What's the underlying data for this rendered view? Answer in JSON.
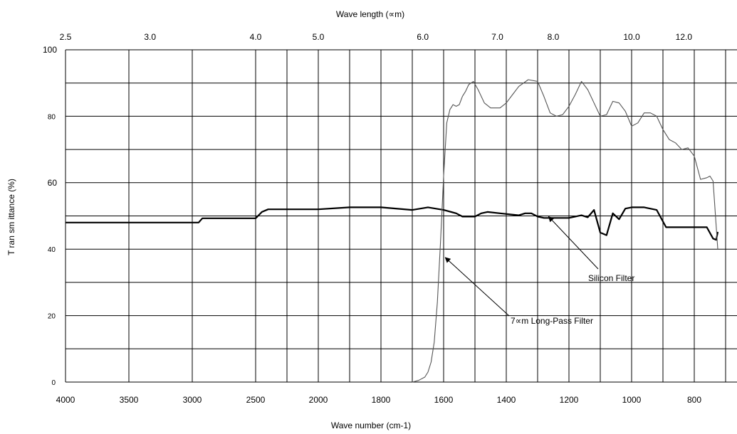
{
  "chart_data": {
    "type": "line",
    "xlabel_top": "Wave length (∝m)",
    "xlabel": "Wave number (cm-1)",
    "ylabel": "T ran sm ittance (%)",
    "ylim": [
      0,
      100
    ],
    "y_ticks": [
      "0",
      "20",
      "40",
      "60",
      "80",
      "100"
    ],
    "x_ticks_bottom": [
      "4000",
      "3500",
      "3000",
      "2500",
      "2000",
      "1800",
      "1600",
      "1400",
      "1200",
      "1000",
      "800"
    ],
    "x_ticks_top": [
      "2.5",
      "3.0",
      "4.0",
      "5.0",
      "6.0",
      "7.0",
      "8.0",
      "10.0",
      "12.0"
    ],
    "grid": true,
    "series": [
      {
        "name": "Silicon Filter",
        "stroke": "#000000",
        "x": [
          4000,
          3500,
          3000,
          2950,
          2920,
          2500,
          2450,
          2400,
          2000,
          1900,
          1800,
          1700,
          1650,
          1600,
          1560,
          1540,
          1500,
          1480,
          1460,
          1420,
          1360,
          1340,
          1320,
          1300,
          1280,
          1220,
          1200,
          1160,
          1140,
          1120,
          1100,
          1080,
          1060,
          1040,
          1020,
          1000,
          960,
          920,
          890,
          800,
          760,
          740,
          730,
          725
        ],
        "values": [
          48,
          48,
          48,
          48,
          49.3,
          49.3,
          51.2,
          52,
          52,
          52.6,
          52.6,
          51.8,
          52.6,
          51.8,
          50.8,
          49.8,
          49.8,
          50.8,
          51.2,
          50.8,
          50.2,
          50.8,
          50.8,
          49.8,
          49.4,
          49.4,
          49.4,
          50.2,
          49.6,
          51.8,
          45,
          44.2,
          50.8,
          49,
          52.2,
          52.6,
          52.6,
          51.8,
          46.6,
          46.6,
          46.6,
          43.2,
          42.8,
          45.2
        ]
      },
      {
        "name": "7∝m Long-Pass Filter",
        "stroke": "#555555",
        "x": [
          1700,
          1680,
          1660,
          1650,
          1640,
          1630,
          1620,
          1610,
          1600,
          1590,
          1580,
          1570,
          1560,
          1550,
          1540,
          1530,
          1520,
          1505,
          1490,
          1470,
          1450,
          1420,
          1400,
          1380,
          1360,
          1330,
          1300,
          1280,
          1260,
          1240,
          1220,
          1200,
          1180,
          1160,
          1140,
          1120,
          1100,
          1080,
          1060,
          1040,
          1020,
          1000,
          980,
          960,
          940,
          920,
          900,
          880,
          860,
          840,
          820,
          800,
          780,
          760,
          750,
          740,
          725
        ],
        "values": [
          0,
          0.5,
          1.5,
          3,
          6,
          12,
          24,
          42,
          62,
          78,
          82,
          83.5,
          83,
          83.5,
          86,
          87.5,
          89.5,
          90.5,
          88,
          84,
          82.5,
          82.5,
          84,
          86.5,
          89,
          91,
          90.5,
          86,
          81,
          80,
          80.5,
          83,
          86.5,
          90.5,
          88,
          84,
          80,
          80.5,
          84.5,
          84,
          81.5,
          77,
          78,
          81,
          81,
          80,
          76,
          73,
          72,
          70,
          70.5,
          68,
          61,
          61.5,
          62,
          60.5,
          40
        ]
      }
    ],
    "annotations": [
      {
        "id": "silicon",
        "text": "Silicon Filter",
        "target_x": 1265,
        "target_y": 49.8
      },
      {
        "id": "longpass",
        "text": "7∝m Long-Pass Filter",
        "target_x": 1595,
        "target_y": 37.5
      }
    ]
  }
}
